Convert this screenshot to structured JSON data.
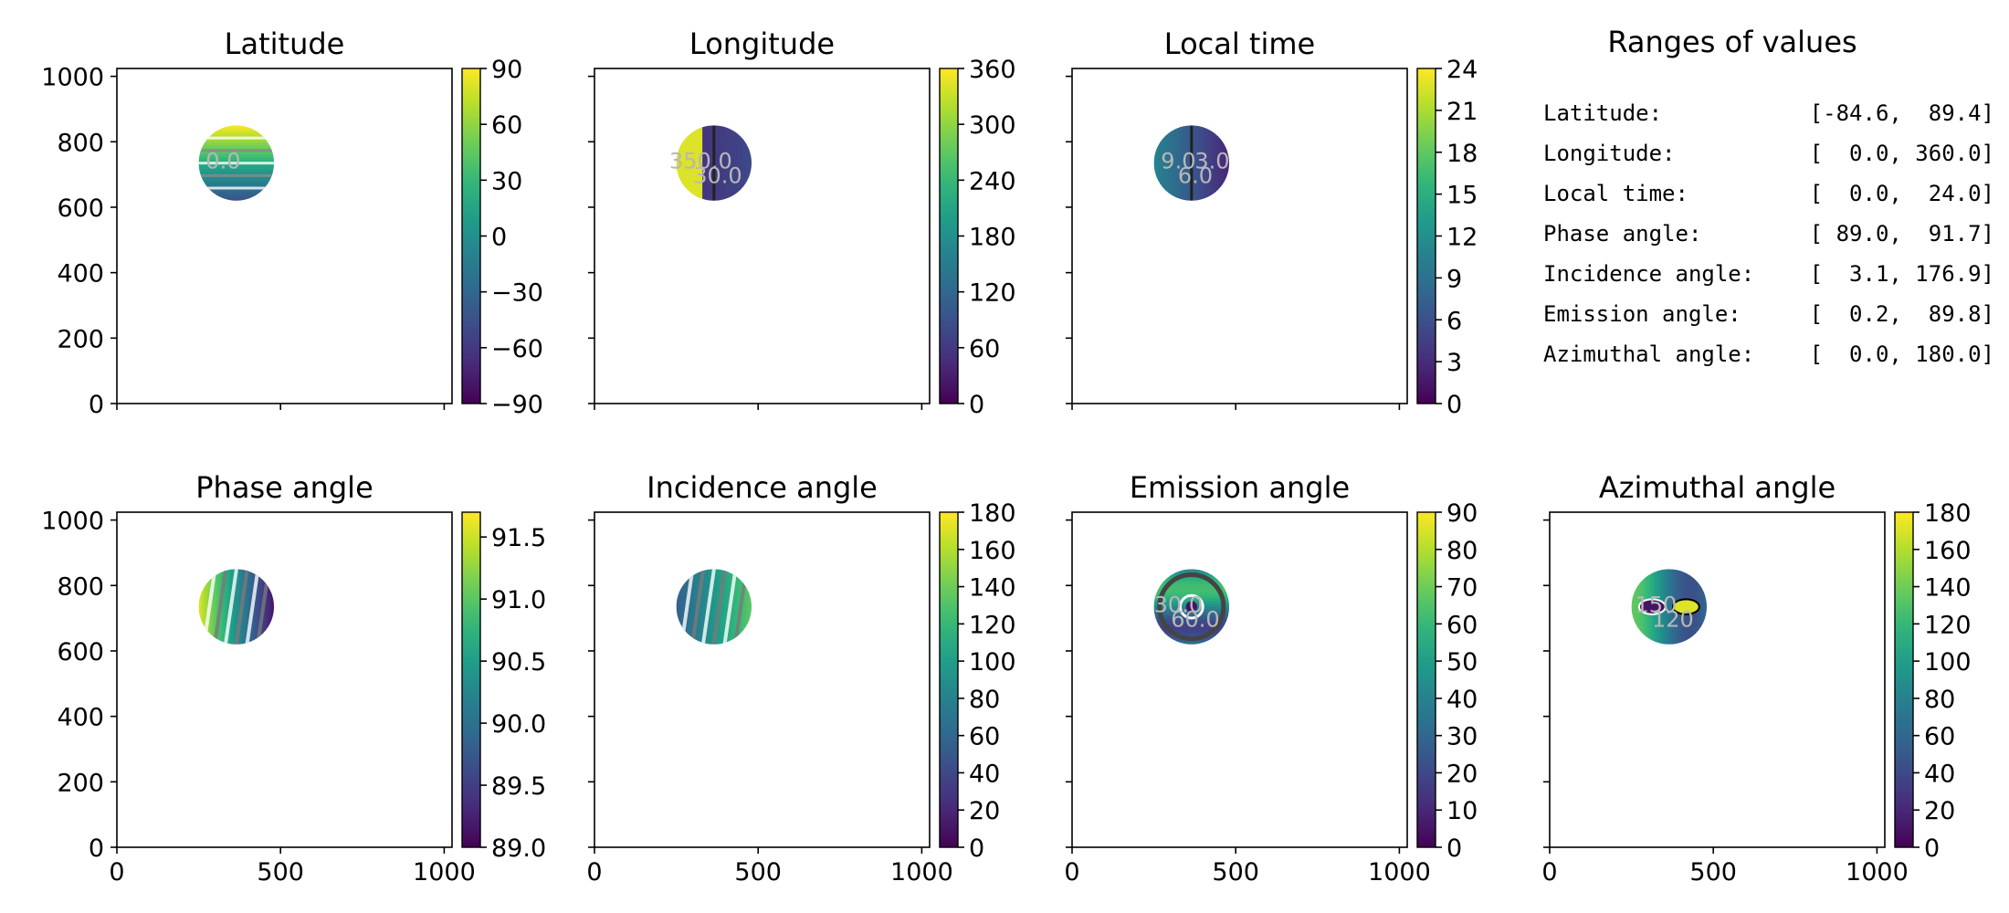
{
  "chart_data": [
    {
      "type": "heatmap",
      "title": "Latitude",
      "colormap": "viridis",
      "xlim": [
        0,
        1024
      ],
      "ylim": [
        0,
        1024
      ],
      "xticks": [
        0,
        500,
        1000
      ],
      "yticks": [
        0,
        200,
        400,
        600,
        800,
        1000
      ],
      "show_xticklabels": false,
      "show_yticklabels": true,
      "disk": {
        "center": [
          365,
          735
        ],
        "radius": 115
      },
      "colorbar": {
        "min": -90,
        "max": 90,
        "ticks": [
          -90,
          -60,
          -30,
          0,
          30,
          60,
          90
        ],
        "tick_labels": [
          "−90",
          "−60",
          "−30",
          "0",
          "30",
          "60",
          "90"
        ]
      },
      "field": "latitude",
      "contour_labels": [
        "0.0"
      ]
    },
    {
      "type": "heatmap",
      "title": "Longitude",
      "colormap": "viridis",
      "xlim": [
        0,
        1024
      ],
      "ylim": [
        0,
        1024
      ],
      "xticks": [
        0,
        500,
        1000
      ],
      "yticks": [
        0,
        200,
        400,
        600,
        800,
        1000
      ],
      "show_xticklabels": false,
      "show_yticklabels": false,
      "disk": {
        "center": [
          365,
          735
        ],
        "radius": 115
      },
      "colorbar": {
        "min": 0,
        "max": 360,
        "ticks": [
          0,
          60,
          120,
          180,
          240,
          300,
          360
        ],
        "tick_labels": [
          "0",
          "60",
          "120",
          "180",
          "240",
          "300",
          "360"
        ]
      },
      "field": "longitude",
      "contour_labels": [
        "350.0",
        "30.0"
      ]
    },
    {
      "type": "heatmap",
      "title": "Local time",
      "colormap": "viridis",
      "xlim": [
        0,
        1024
      ],
      "ylim": [
        0,
        1024
      ],
      "xticks": [
        0,
        500,
        1000
      ],
      "yticks": [
        0,
        200,
        400,
        600,
        800,
        1000
      ],
      "show_xticklabels": false,
      "show_yticklabels": false,
      "disk": {
        "center": [
          365,
          735
        ],
        "radius": 115
      },
      "colorbar": {
        "min": 0,
        "max": 24,
        "ticks": [
          0,
          3,
          6,
          9,
          12,
          15,
          18,
          21,
          24
        ],
        "tick_labels": [
          "0",
          "3",
          "6",
          "9",
          "12",
          "15",
          "18",
          "21",
          "24"
        ]
      },
      "field": "localtime",
      "contour_labels": [
        "9.0",
        "6.0",
        "3.0"
      ]
    },
    {
      "type": "heatmap",
      "title": "Phase angle",
      "colormap": "viridis",
      "xlim": [
        0,
        1024
      ],
      "ylim": [
        0,
        1024
      ],
      "xticks": [
        0,
        500,
        1000
      ],
      "yticks": [
        0,
        200,
        400,
        600,
        800,
        1000
      ],
      "show_xticklabels": true,
      "show_yticklabels": true,
      "disk": {
        "center": [
          365,
          735
        ],
        "radius": 115
      },
      "colorbar": {
        "min": 89.0,
        "max": 91.7,
        "ticks": [
          89.0,
          89.5,
          90.0,
          90.5,
          91.0,
          91.5
        ],
        "tick_labels": [
          "89.0",
          "89.5",
          "90.0",
          "90.5",
          "91.0",
          "91.5"
        ]
      },
      "field": "phase",
      "contour_labels": []
    },
    {
      "type": "heatmap",
      "title": "Incidence angle",
      "colormap": "viridis",
      "xlim": [
        0,
        1024
      ],
      "ylim": [
        0,
        1024
      ],
      "xticks": [
        0,
        500,
        1000
      ],
      "yticks": [
        0,
        200,
        400,
        600,
        800,
        1000
      ],
      "show_xticklabels": true,
      "show_yticklabels": false,
      "disk": {
        "center": [
          365,
          735
        ],
        "radius": 115
      },
      "colorbar": {
        "min": 0,
        "max": 180,
        "ticks": [
          0,
          20,
          40,
          60,
          80,
          100,
          120,
          140,
          160,
          180
        ],
        "tick_labels": [
          "0",
          "20",
          "40",
          "60",
          "80",
          "100",
          "120",
          "140",
          "160",
          "180"
        ]
      },
      "field": "incidence",
      "contour_labels": []
    },
    {
      "type": "heatmap",
      "title": "Emission angle",
      "colormap": "viridis",
      "xlim": [
        0,
        1024
      ],
      "ylim": [
        0,
        1024
      ],
      "xticks": [
        0,
        500,
        1000
      ],
      "yticks": [
        0,
        200,
        400,
        600,
        800,
        1000
      ],
      "show_xticklabels": true,
      "show_yticklabels": false,
      "disk": {
        "center": [
          365,
          735
        ],
        "radius": 115
      },
      "colorbar": {
        "min": 0,
        "max": 90,
        "ticks": [
          0,
          10,
          20,
          30,
          40,
          50,
          60,
          70,
          80,
          90
        ],
        "tick_labels": [
          "0",
          "10",
          "20",
          "30",
          "40",
          "50",
          "60",
          "70",
          "80",
          "90"
        ]
      },
      "field": "emission",
      "contour_labels": [
        "30.0",
        "60.0"
      ]
    },
    {
      "type": "heatmap",
      "title": "Azimuthal angle",
      "colormap": "viridis",
      "xlim": [
        0,
        1024
      ],
      "ylim": [
        0,
        1024
      ],
      "xticks": [
        0,
        500,
        1000
      ],
      "yticks": [
        0,
        200,
        400,
        600,
        800,
        1000
      ],
      "show_xticklabels": true,
      "show_yticklabels": false,
      "disk": {
        "center": [
          365,
          735
        ],
        "radius": 115
      },
      "colorbar": {
        "min": 0,
        "max": 180,
        "ticks": [
          0,
          20,
          40,
          60,
          80,
          100,
          120,
          140,
          160,
          180
        ],
        "tick_labels": [
          "0",
          "20",
          "40",
          "60",
          "80",
          "100",
          "120",
          "140",
          "160",
          "180"
        ]
      },
      "field": "azimuth",
      "contour_labels": [
        "150",
        "120"
      ]
    }
  ],
  "ranges_panel": {
    "title": "Ranges of values",
    "rows": [
      {
        "label": "Latitude:",
        "value": "[-84.6,  89.4]"
      },
      {
        "label": "Longitude:",
        "value": "[  0.0, 360.0]"
      },
      {
        "label": "Local time:",
        "value": "[  0.0,  24.0]"
      },
      {
        "label": "Phase angle:",
        "value": "[ 89.0,  91.7]"
      },
      {
        "label": "Incidence angle:",
        "value": "[  3.1, 176.9]"
      },
      {
        "label": "Emission angle:",
        "value": "[  0.2,  89.8]"
      },
      {
        "label": "Azimuthal angle:",
        "value": "[  0.0, 180.0]"
      }
    ]
  }
}
